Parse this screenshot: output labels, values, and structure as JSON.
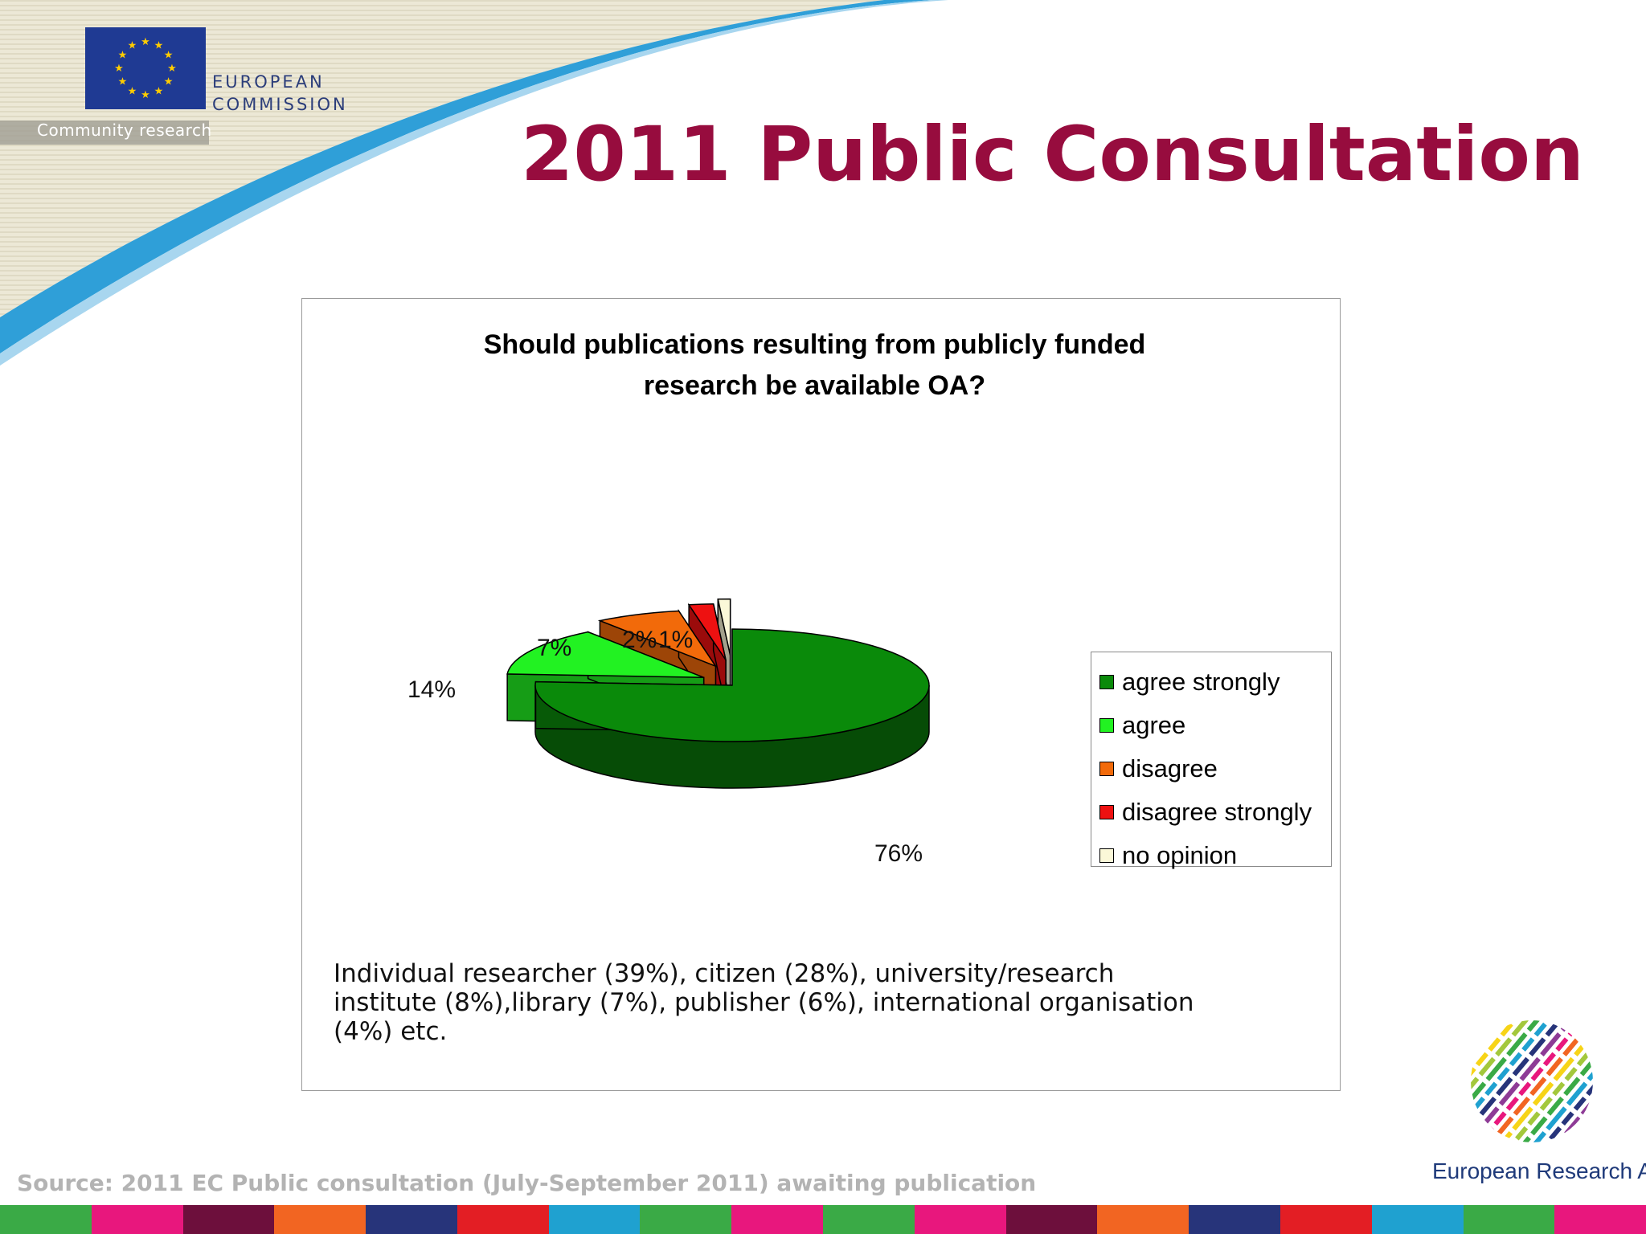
{
  "header": {
    "org_line1": "EUROPEAN",
    "org_line2": "COMMISSION",
    "tagline": "Community research",
    "title": "2011 Public Consultation"
  },
  "colors": {
    "title": "#970c3e",
    "eu_blue": "#1f3a93",
    "eu_star": "#ffcc00",
    "swoosh_blue": "#2f9fd8",
    "band_bg": "#e9e5d2"
  },
  "chart_data": {
    "type": "pie",
    "style": "3d-exploded",
    "title": "Should publications resulting from publicly funded research be available OA?",
    "title_lines": [
      "Should publications resulting from publicly funded",
      "research be available OA?"
    ],
    "categories": [
      "agree strongly",
      "agree",
      "disagree",
      "disagree strongly",
      "no opinion"
    ],
    "values": [
      76,
      14,
      7,
      2,
      1
    ],
    "data_labels": [
      "76%",
      "14%",
      "7%",
      "2%",
      "1%"
    ],
    "colors": [
      "#0a8a0a",
      "#22f222",
      "#f26a0a",
      "#ee1111",
      "#fbf8d8"
    ],
    "legend": {
      "position": "right",
      "entries": [
        "agree strongly",
        "agree",
        "disagree",
        "disagree strongly",
        "no opinion"
      ]
    },
    "note_lines": [
      "Individual researcher (39%), citizen (28%), university/research",
      "institute (8%),library (7%), publisher (6%), international organisation",
      "(4%) etc."
    ]
  },
  "footer": {
    "source": "Source: 2011 EC Public consultation (July-September 2011) awaiting publication",
    "era_label": "European Research Area",
    "stripe_colors": [
      "#3aaa46",
      "#e8177d",
      "#6d0f3c",
      "#f26522",
      "#27347a",
      "#e31e24",
      "#1fa1d0",
      "#3aaa46",
      "#e8177d",
      "#3aaa46",
      "#e8177d",
      "#6d0f3c",
      "#f26522",
      "#27347a",
      "#e31e24",
      "#1fa1d0",
      "#3aaa46",
      "#e8177d"
    ]
  }
}
